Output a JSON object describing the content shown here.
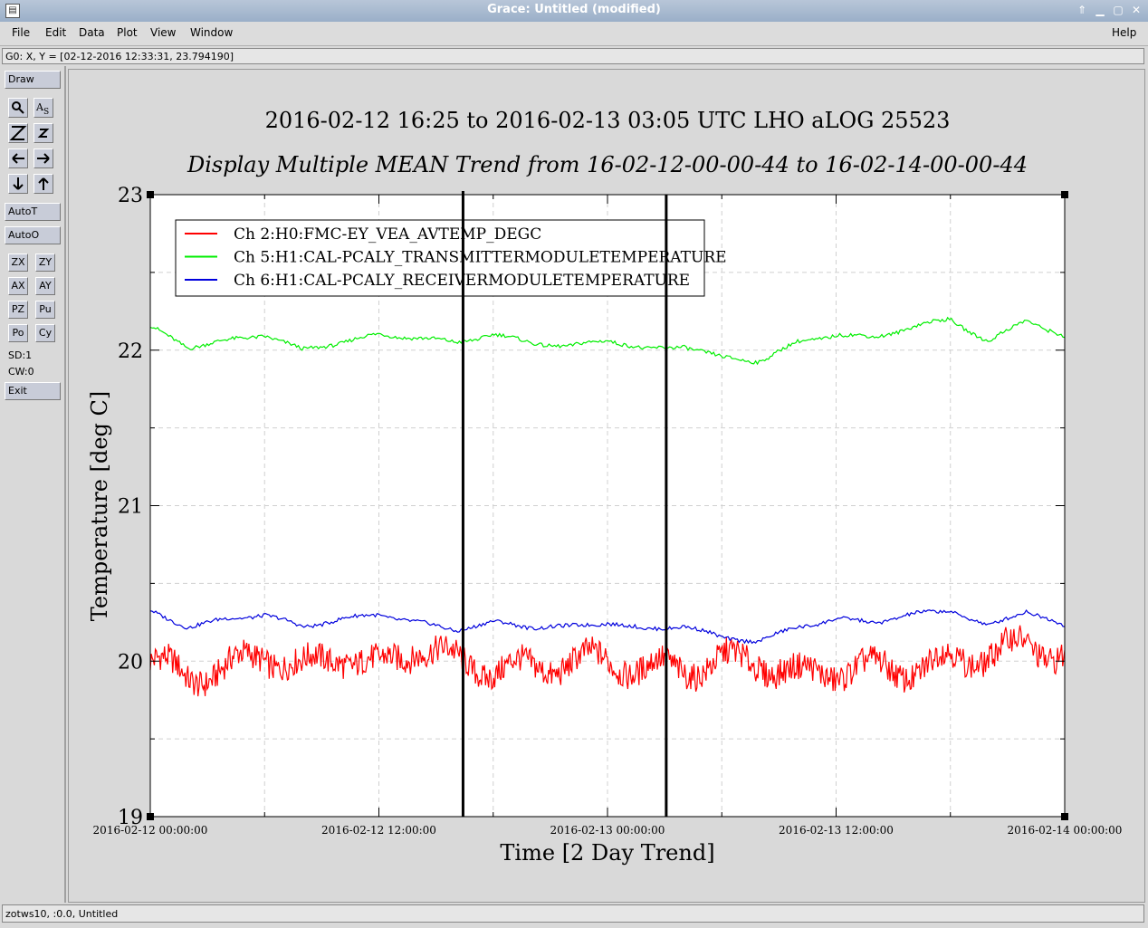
{
  "window": {
    "title": "Grace: Untitled (modified)",
    "controls": [
      "⇑",
      "▁",
      "▢",
      "✕"
    ]
  },
  "menubar": {
    "items": [
      "File",
      "Edit",
      "Data",
      "Plot",
      "View",
      "Window"
    ],
    "help": "Help"
  },
  "locator": {
    "text": "G0: X, Y = [02-12-2016 12:33:31, 23.794190]"
  },
  "toolbar": {
    "draw": "Draw",
    "autot": "AutoT",
    "autoo": "AutoO",
    "zx": "ZX",
    "zy": "ZY",
    "ax": "AX",
    "ay": "AY",
    "pz": "PZ",
    "pu": "Pu",
    "po": "Po",
    "cy": "Cy",
    "sd": "SD:1",
    "cw": "CW:0",
    "exit": "Exit",
    "icons": [
      "zoom-icon",
      "autoscale-icon",
      "zoom-z-icon",
      "zoom-z-small-icon",
      "left-arrow-icon",
      "right-arrow-icon",
      "down-arrow-icon",
      "up-arrow-icon"
    ]
  },
  "statusbar": {
    "text": "zotws10, :0.0, Untitled"
  },
  "chart_data": {
    "type": "line",
    "title": "2016-02-12 16:25 to 2016-02-13 03:05 UTC LHO aLOG 25523",
    "subtitle": "Display Multiple MEAN Trend from 16-02-12-00-00-44 to 16-02-14-00-00-44",
    "xlabel": "Time [2 Day Trend]",
    "ylabel": "Temperature [deg C]",
    "xlim": [
      "2016-02-12 00:00:00",
      "2016-02-14 00:00:00"
    ],
    "ylim": [
      19,
      23
    ],
    "xticks": [
      "2016-02-12 00:00:00",
      "2016-02-12 12:00:00",
      "2016-02-13 00:00:00",
      "2016-02-13 12:00:00",
      "2016-02-14 00:00:00"
    ],
    "yticks": [
      "19",
      "20",
      "21",
      "22",
      "23"
    ],
    "grid": true,
    "legend_position": "top-left",
    "vertical_markers": [
      "2016-02-12 16:25",
      "2016-02-13 03:05"
    ],
    "x_hours": [
      0,
      2,
      4,
      6,
      8,
      10,
      12,
      14,
      16,
      18,
      20,
      22,
      24,
      26,
      28,
      30,
      32,
      34,
      36,
      38,
      40,
      42,
      44,
      46,
      48
    ],
    "series": [
      {
        "name": "Ch 2:H0:FMC-EY_VEA_AVTEMP_DEGC",
        "color": "#ff0000",
        "values": [
          20.0,
          19.9,
          19.95,
          20.05,
          19.95,
          20.05,
          19.95,
          20.1,
          20.0,
          19.95,
          19.95,
          20.0,
          20.0,
          19.95,
          19.95,
          20.0,
          20.0,
          19.9,
          19.95,
          19.95,
          19.95,
          20.0,
          20.05,
          20.1,
          20.05
        ]
      },
      {
        "name": "Ch 5:H1:CAL-PCALY_TRANSMITTERMODULETEMPERATURE",
        "color": "#00ee00",
        "values": [
          22.15,
          22.02,
          22.06,
          22.1,
          22.0,
          22.05,
          22.1,
          22.08,
          22.05,
          22.1,
          22.05,
          22.02,
          22.07,
          22.0,
          22.03,
          21.95,
          21.93,
          22.05,
          22.1,
          22.08,
          22.15,
          22.2,
          22.05,
          22.2,
          22.08
        ]
      },
      {
        "name": "Ch 6:H1:CAL-PCALY_RECEIVERMODULETEMPERATURE",
        "color": "#0000dd",
        "values": [
          20.32,
          20.22,
          20.27,
          20.3,
          20.22,
          20.27,
          20.3,
          20.25,
          20.2,
          20.25,
          20.22,
          20.22,
          20.25,
          20.2,
          20.23,
          20.15,
          20.13,
          20.22,
          20.27,
          20.25,
          20.3,
          20.33,
          20.22,
          20.33,
          20.22
        ]
      }
    ]
  }
}
